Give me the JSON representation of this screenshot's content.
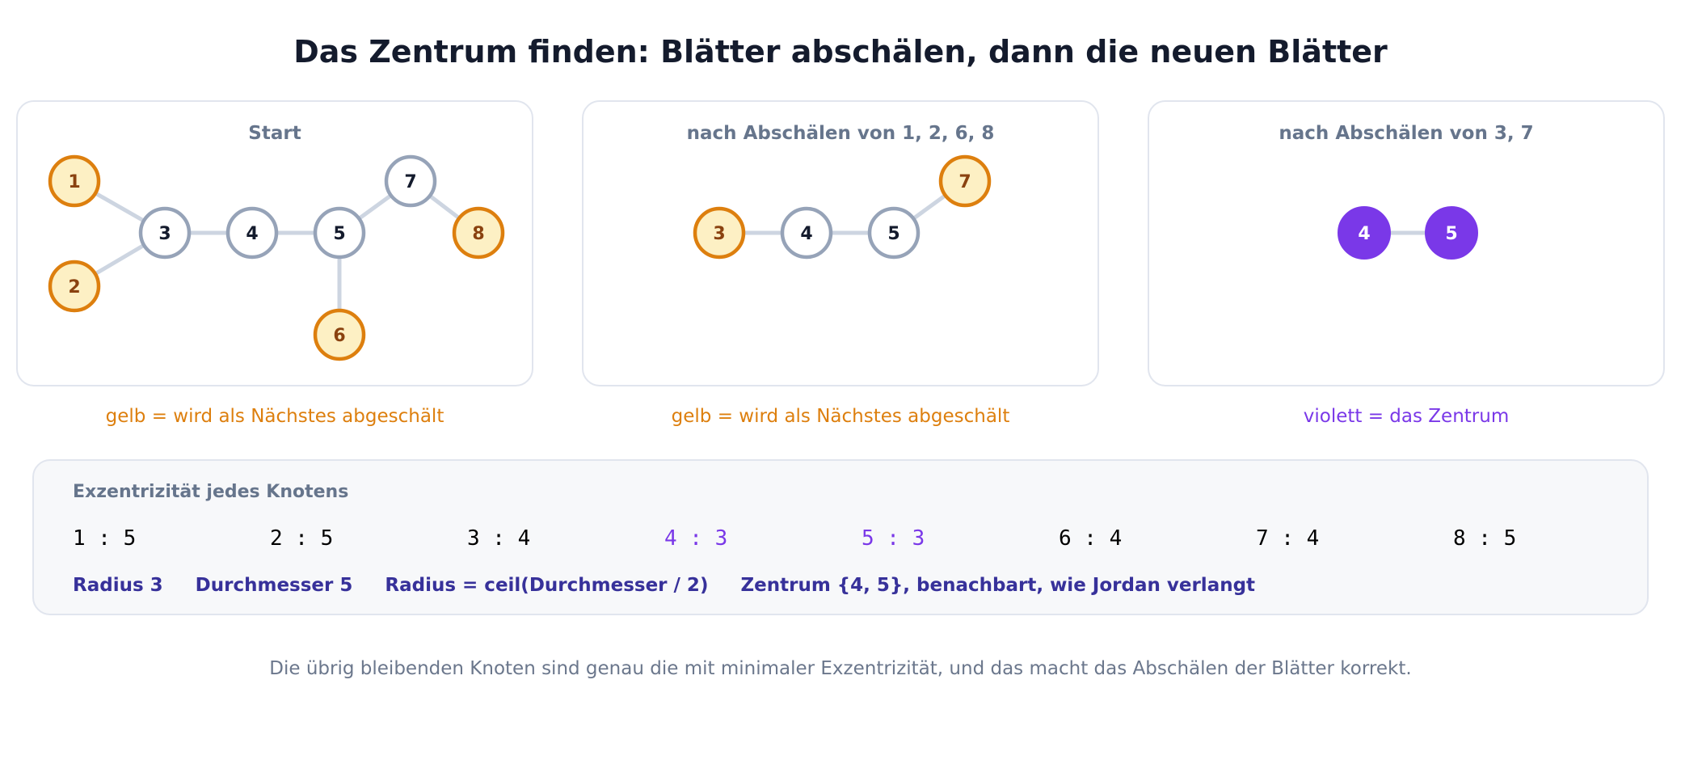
{
  "title": "Das Zentrum finden: Blätter abschälen, dann die neuen Blätter",
  "colors": {
    "leaf_fill": "#fdf0c4",
    "leaf_stroke": "#dd7f0e",
    "leaf_text": "#8a4210",
    "node_stroke": "#96a3b8",
    "node_text": "#141b2d",
    "edge": "#cdd5e1",
    "center": "#7a38e8",
    "caption_leaf": "#dd7f0e",
    "caption_center": "#7a38e8",
    "facts": "#37319a"
  },
  "panels": [
    {
      "title": "Start",
      "caption": "gelb = wird als Nächstes abgeschält",
      "caption_kind": "leaf",
      "nodes": [
        {
          "id": "1",
          "kind": "leaf"
        },
        {
          "id": "2",
          "kind": "leaf"
        },
        {
          "id": "3",
          "kind": "normal"
        },
        {
          "id": "4",
          "kind": "normal"
        },
        {
          "id": "5",
          "kind": "normal"
        },
        {
          "id": "6",
          "kind": "leaf"
        },
        {
          "id": "7",
          "kind": "normal"
        },
        {
          "id": "8",
          "kind": "leaf"
        }
      ],
      "edges": [
        [
          "1",
          "3"
        ],
        [
          "2",
          "3"
        ],
        [
          "3",
          "4"
        ],
        [
          "4",
          "5"
        ],
        [
          "5",
          "6"
        ],
        [
          "5",
          "7"
        ],
        [
          "7",
          "8"
        ]
      ]
    },
    {
      "title": "nach Abschälen von 1, 2, 6, 8",
      "caption": "gelb = wird als Nächstes abgeschält",
      "caption_kind": "leaf",
      "nodes": [
        {
          "id": "3",
          "kind": "leaf"
        },
        {
          "id": "4",
          "kind": "normal"
        },
        {
          "id": "5",
          "kind": "normal"
        },
        {
          "id": "7",
          "kind": "leaf"
        }
      ],
      "edges": [
        [
          "3",
          "4"
        ],
        [
          "4",
          "5"
        ],
        [
          "5",
          "7"
        ]
      ]
    },
    {
      "title": "nach Abschälen von 3, 7",
      "caption": "violett = das Zentrum",
      "caption_kind": "center",
      "nodes": [
        {
          "id": "4",
          "kind": "center"
        },
        {
          "id": "5",
          "kind": "center"
        }
      ],
      "edges": [
        [
          "4",
          "5"
        ]
      ]
    }
  ],
  "eccentricity": {
    "title": "Exzentrizität jedes Knotens",
    "items": [
      {
        "node": "1",
        "value": "5",
        "center": false
      },
      {
        "node": "2",
        "value": "5",
        "center": false
      },
      {
        "node": "3",
        "value": "4",
        "center": false
      },
      {
        "node": "4",
        "value": "3",
        "center": true
      },
      {
        "node": "5",
        "value": "3",
        "center": true
      },
      {
        "node": "6",
        "value": "4",
        "center": false
      },
      {
        "node": "7",
        "value": "4",
        "center": false
      },
      {
        "node": "8",
        "value": "5",
        "center": false
      }
    ],
    "facts": [
      "Radius 3",
      "Durchmesser 5",
      "Radius = ceil(Durchmesser / 2)",
      "Zentrum {4, 5}, benachbart, wie Jordan verlangt"
    ]
  },
  "footer": "Die übrig bleibenden Knoten sind genau die mit minimaler Exzentrizität, und das macht das Abschälen der Blätter korrekt."
}
